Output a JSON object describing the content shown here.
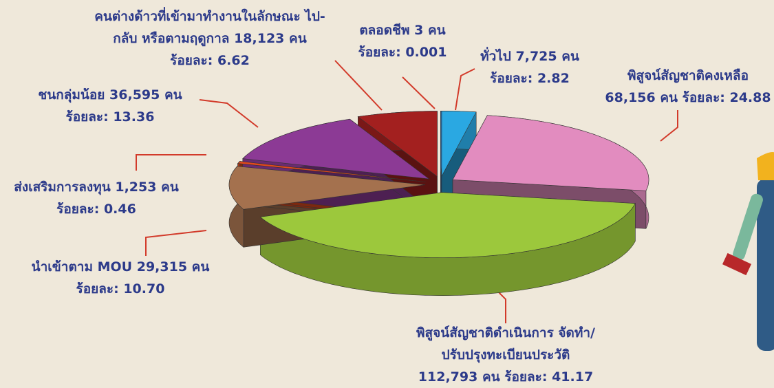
{
  "chart_data": {
    "type": "pie",
    "categories": [
      "ตลอดชีพ",
      "ทั่วไป",
      "พิสูจน์สัญชาติคงเหลือ",
      "พิสูจน์สัญชาติดำเนินการ จัดทำ/ปรับปรุงทะเบียนประวัติ",
      "นำเข้าตาม MOU",
      "ส่งเสริมการลงทุน",
      "ชนกลุ่มน้อย",
      "คนต่างด้าวที่เข้ามาทำงานในลักษณะ ไป-กลับ หรือตามฤดูกาล"
    ],
    "values": [
      0.001,
      2.82,
      24.88,
      41.17,
      10.7,
      0.46,
      13.36,
      6.62
    ],
    "value_labels": [
      "ร้อยละ: 0.001",
      "ร้อยละ: 2.82",
      "ร้อยละ: 24.88",
      "ร้อยละ: 41.17",
      "ร้อยละ: 10.70",
      "ร้อยละ: 0.46",
      "ร้อยละ: 13.36",
      "ร้อยละ: 6.62"
    ],
    "counts": [
      3,
      7725,
      68156,
      112793,
      29315,
      1253,
      36595,
      18123
    ],
    "count_labels": [
      "3 คน",
      "7,725 คน",
      "68,156 คน",
      "112,793 คน",
      "29,315 คน",
      "1,253 คน",
      "36,595 คน",
      "18,123 คน"
    ],
    "colors": [
      "#1f6fb5",
      "#2aa8e2",
      "#e28cbf",
      "#9cc83c",
      "#a4714e",
      "#e2491c",
      "#8c3a95",
      "#a3201f"
    ]
  }
}
